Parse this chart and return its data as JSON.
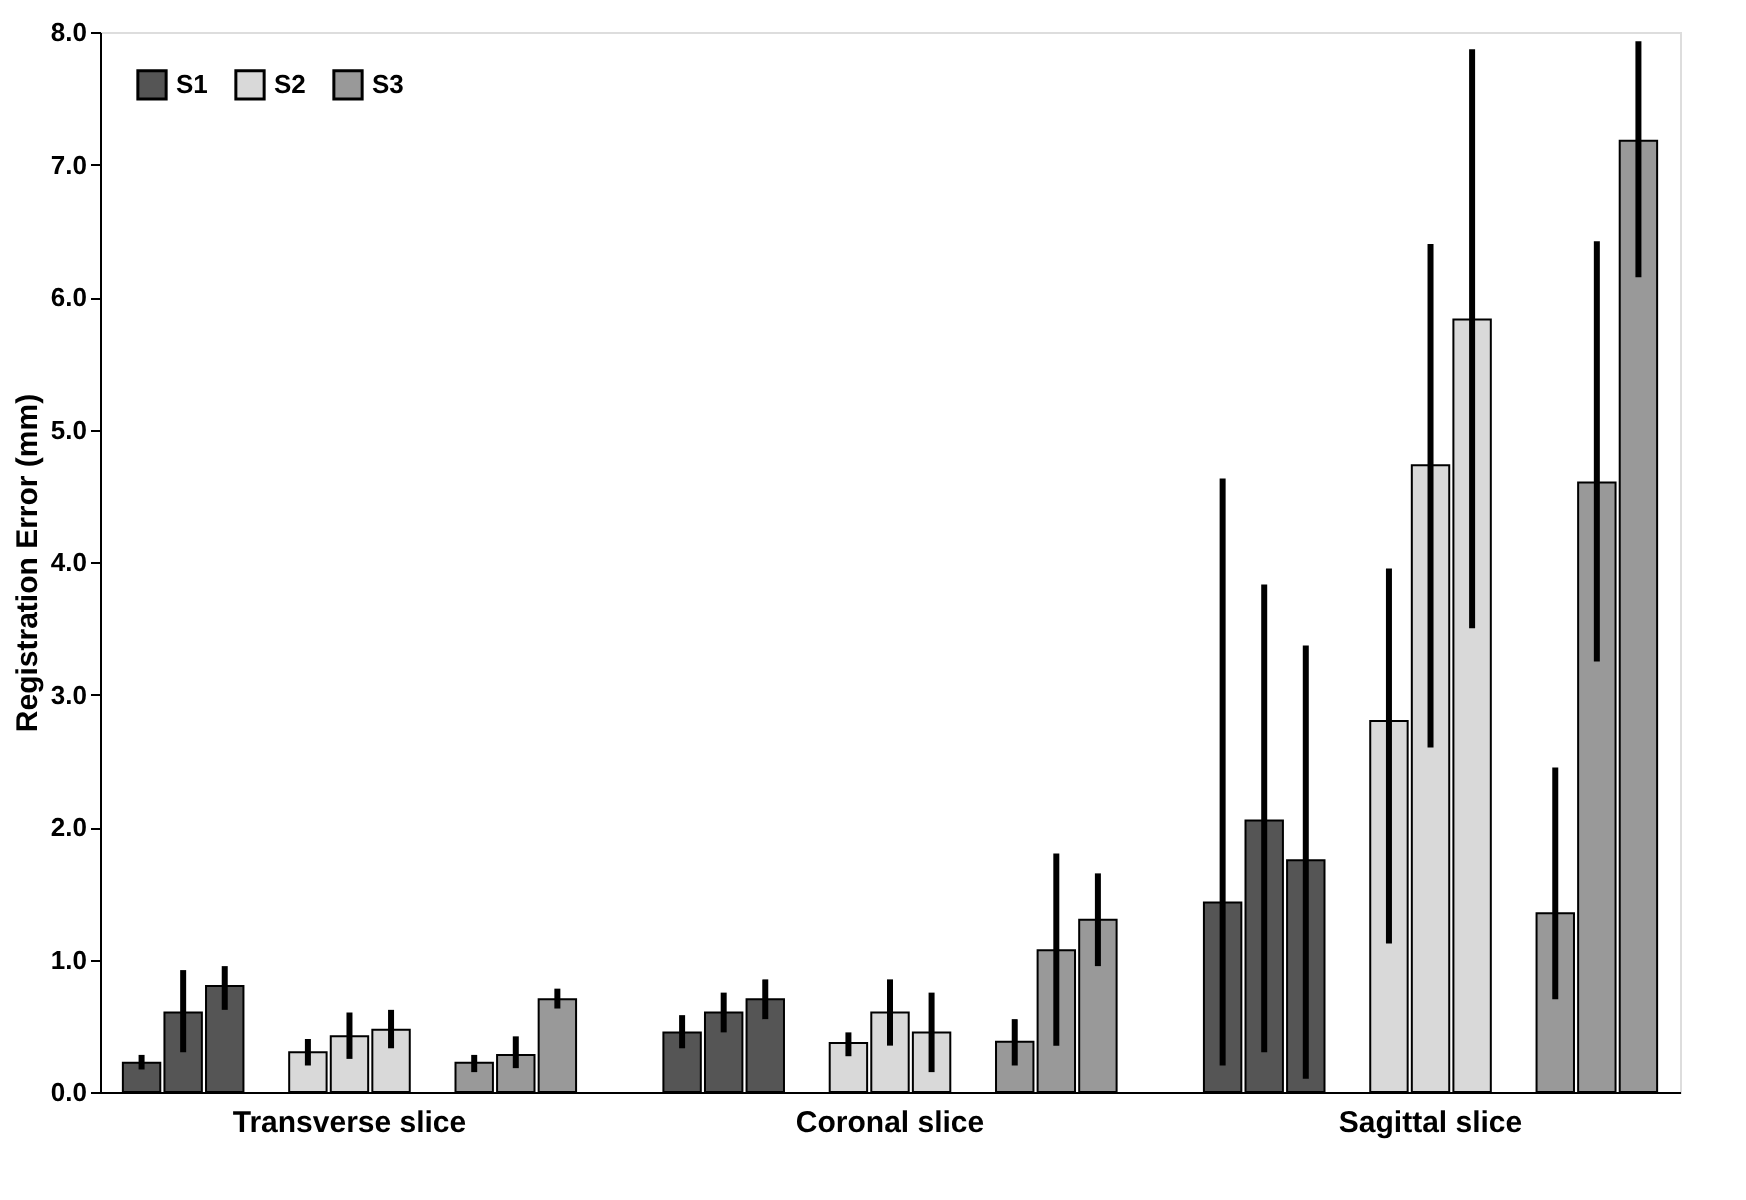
{
  "chart_data": {
    "type": "bar",
    "ylabel": "Registration Error (mm)",
    "categories": [
      null,
      null,
      null,
      null,
      null,
      "Transverse slice",
      null,
      null,
      null,
      null,
      null,
      null,
      null,
      null,
      null,
      null,
      null,
      null,
      "Coronal slice",
      null,
      null,
      null,
      null,
      null,
      null,
      null,
      null,
      null,
      null,
      null,
      null,
      "Sagittal slice",
      null,
      null,
      null,
      null,
      null
    ],
    "series": [
      {
        "name": "S1",
        "color": "#555555",
        "values": [
          0.22,
          0.6,
          0.8,
          null,
          null,
          null,
          null,
          null,
          null,
          null,
          null,
          null,
          null,
          0.45,
          0.6,
          0.7,
          null,
          null,
          null,
          null,
          null,
          null,
          null,
          null,
          null,
          null,
          1.43,
          2.05,
          1.75,
          null,
          null,
          null,
          null,
          null,
          null,
          null,
          null
        ],
        "errors": [
          [
            0.17,
            0.28
          ],
          [
            0.3,
            0.92
          ],
          [
            0.62,
            0.95
          ],
          null,
          null,
          null,
          null,
          null,
          null,
          null,
          null,
          null,
          null,
          [
            0.33,
            0.58
          ],
          [
            0.45,
            0.75
          ],
          [
            0.55,
            0.85
          ],
          null,
          null,
          null,
          null,
          null,
          null,
          null,
          null,
          null,
          null,
          [
            0.2,
            4.63
          ],
          [
            0.3,
            3.83
          ],
          [
            0.1,
            3.37
          ],
          null,
          null,
          null,
          null,
          null,
          null,
          null,
          null
        ]
      },
      {
        "name": "S2",
        "color": "#d9d9d9",
        "values": [
          null,
          null,
          null,
          null,
          0.3,
          0.42,
          0.47,
          null,
          null,
          null,
          null,
          null,
          null,
          null,
          null,
          null,
          null,
          0.37,
          0.6,
          0.45,
          null,
          null,
          null,
          null,
          null,
          null,
          null,
          null,
          null,
          null,
          2.8,
          4.73,
          5.83,
          null,
          null,
          null,
          null
        ],
        "errors": [
          null,
          null,
          null,
          null,
          [
            0.2,
            0.4
          ],
          [
            0.25,
            0.6
          ],
          [
            0.33,
            0.62
          ],
          null,
          null,
          null,
          null,
          null,
          null,
          null,
          null,
          null,
          null,
          [
            0.27,
            0.45
          ],
          [
            0.35,
            0.85
          ],
          [
            0.15,
            0.75
          ],
          null,
          null,
          null,
          null,
          null,
          null,
          null,
          null,
          null,
          null,
          [
            1.12,
            3.95
          ],
          [
            2.6,
            6.4
          ],
          [
            3.5,
            7.87
          ],
          null,
          null,
          null,
          null
        ]
      },
      {
        "name": "S3",
        "color": "#999999",
        "values": [
          null,
          null,
          null,
          null,
          null,
          null,
          null,
          null,
          0.22,
          0.28,
          0.7,
          null,
          null,
          null,
          null,
          null,
          null,
          null,
          null,
          null,
          null,
          0.38,
          1.07,
          1.3,
          null,
          null,
          null,
          null,
          null,
          null,
          null,
          null,
          null,
          null,
          1.35,
          4.6,
          7.18
        ],
        "errors": [
          null,
          null,
          null,
          null,
          null,
          null,
          null,
          null,
          [
            0.15,
            0.28
          ],
          [
            0.18,
            0.42
          ],
          [
            0.63,
            0.78
          ],
          null,
          null,
          null,
          null,
          null,
          null,
          null,
          null,
          null,
          null,
          [
            0.2,
            0.55
          ],
          [
            0.35,
            1.8
          ],
          [
            0.95,
            1.65
          ],
          null,
          null,
          null,
          null,
          null,
          null,
          null,
          null,
          null,
          null,
          [
            0.7,
            2.45
          ],
          [
            3.25,
            6.42
          ],
          [
            6.15,
            7.93
          ]
        ]
      }
    ],
    "ylim": [
      0,
      8
    ],
    "yticks": [
      {
        "value": 0,
        "label": "0.0"
      },
      {
        "value": 1,
        "label": "1.0"
      },
      {
        "value": 2,
        "label": "2.0"
      },
      {
        "value": 3,
        "label": "3.0"
      },
      {
        "value": 4,
        "label": "4.0"
      },
      {
        "value": 5,
        "label": "5.0"
      },
      {
        "value": 6,
        "label": "6.0"
      },
      {
        "value": 7,
        "label": "7.0"
      },
      {
        "value": 8,
        "label": "8.0"
      }
    ],
    "legend": "top left",
    "grid": false
  }
}
